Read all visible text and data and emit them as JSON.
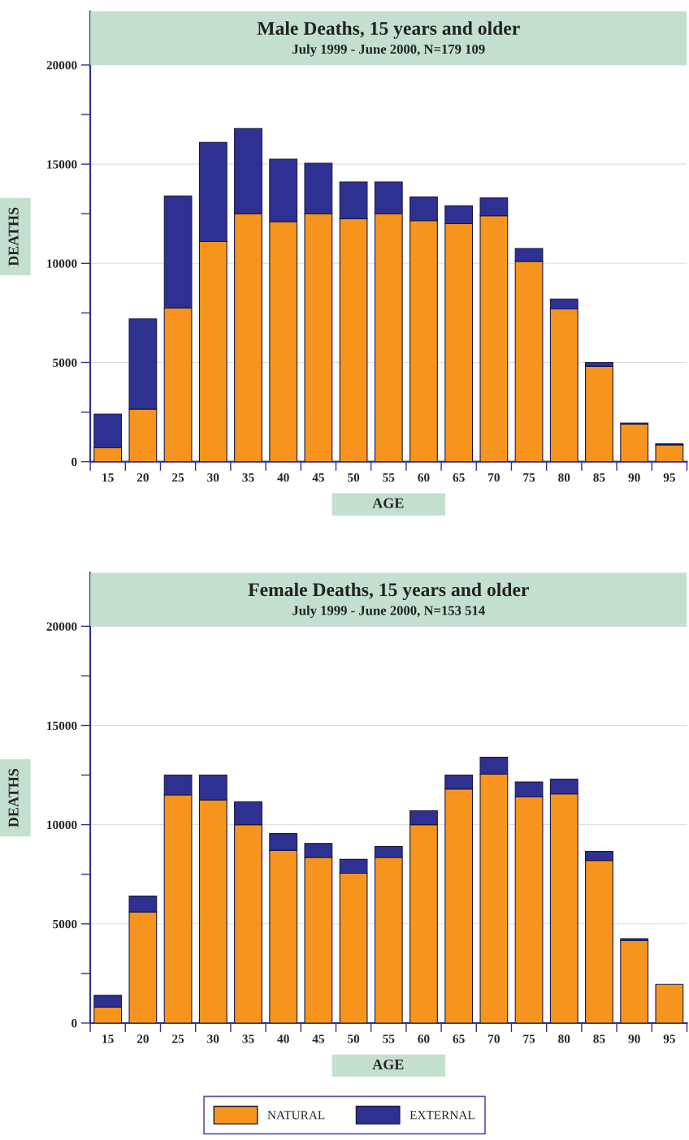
{
  "chart_data": [
    {
      "type": "bar",
      "title": "Male Deaths, 15 years and older",
      "subtitle": "July 1999 - June 2000, N=179 109",
      "xlabel": "AGE",
      "ylabel": "DEATHS",
      "stacked": true,
      "grid": "y",
      "legend": "bottom",
      "categories": [
        "15",
        "20",
        "25",
        "30",
        "35",
        "40",
        "45",
        "50",
        "55",
        "60",
        "65",
        "70",
        "75",
        "80",
        "85",
        "90",
        "95"
      ],
      "ylim": [
        0,
        22700
      ],
      "yticks": [
        0,
        {
          "value": 2500,
          "label": null
        },
        5000,
        {
          "value": 7500,
          "label": null
        },
        10000,
        {
          "value": 12500,
          "label": null
        },
        15000,
        {
          "value": 17500,
          "label": null
        },
        20000
      ],
      "series": [
        {
          "name": "NATURAL",
          "color": "#f7941d",
          "values": [
            700,
            2650,
            7750,
            11100,
            12500,
            12100,
            12500,
            12250,
            12500,
            12150,
            12000,
            12400,
            10100,
            7700,
            4800,
            1900,
            850
          ]
        },
        {
          "name": "EXTERNAL",
          "color": "#2e3192",
          "values": [
            1700,
            4550,
            5650,
            5000,
            4300,
            3150,
            2550,
            1850,
            1600,
            1200,
            900,
            900,
            650,
            500,
            200,
            50,
            50
          ]
        }
      ],
      "bands": [
        {
          "axis": "y",
          "from": 20000,
          "to": 22700,
          "color": "#c3e0cf"
        }
      ]
    },
    {
      "type": "bar",
      "title": "Female Deaths, 15 years and older",
      "subtitle": "July 1999 - June 2000, N=153 514",
      "xlabel": "AGE",
      "ylabel": "DEATHS",
      "stacked": true,
      "grid": "y",
      "legend": "bottom",
      "categories": [
        "15",
        "20",
        "25",
        "30",
        "35",
        "40",
        "45",
        "50",
        "55",
        "60",
        "65",
        "70",
        "75",
        "80",
        "85",
        "90",
        "95"
      ],
      "ylim": [
        0,
        22700
      ],
      "yticks": [
        0,
        {
          "value": 2500,
          "label": null
        },
        5000,
        {
          "value": 7500,
          "label": null
        },
        10000,
        {
          "value": 12500,
          "label": null
        },
        15000,
        {
          "value": 17500,
          "label": null
        },
        20000
      ],
      "series": [
        {
          "name": "NATURAL",
          "color": "#f7941d",
          "values": [
            800,
            5600,
            11500,
            11250,
            10000,
            8700,
            8350,
            7550,
            8350,
            10000,
            11800,
            12550,
            11400,
            11550,
            8200,
            4150,
            1950
          ]
        },
        {
          "name": "EXTERNAL",
          "color": "#2e3192",
          "values": [
            600,
            800,
            1000,
            1250,
            1150,
            850,
            700,
            700,
            550,
            700,
            700,
            850,
            750,
            750,
            450,
            100,
            null
          ]
        }
      ],
      "bands": [
        {
          "axis": "y",
          "from": 20000,
          "to": 22700,
          "color": "#c3e0cf"
        }
      ]
    }
  ]
}
